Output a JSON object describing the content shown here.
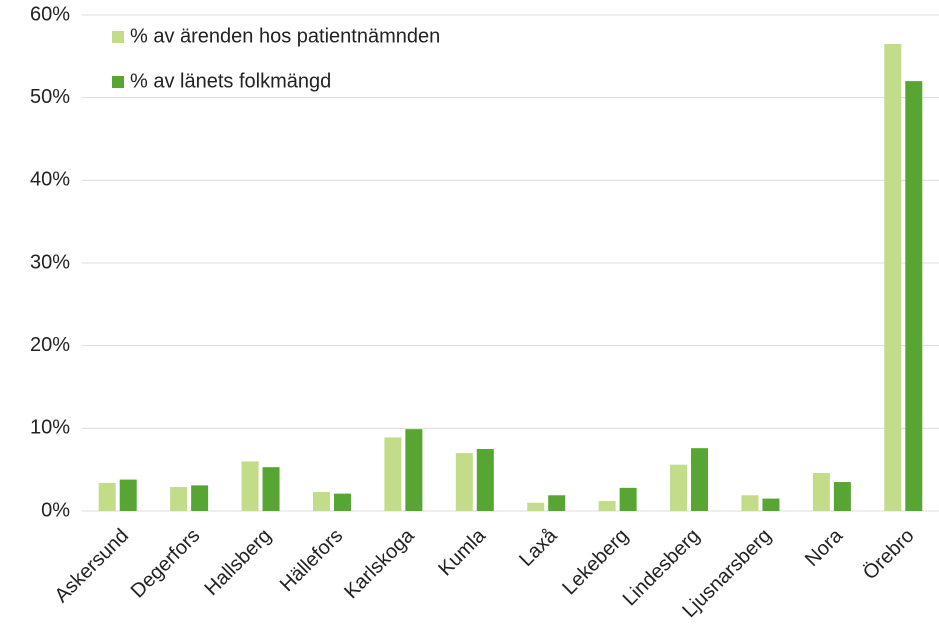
{
  "chart_data": {
    "type": "bar",
    "categories": [
      "Askersund",
      "Degerfors",
      "Hallsberg",
      "Hällefors",
      "Karlskoga",
      "Kumla",
      "Laxå",
      "Lekeberg",
      "Lindesberg",
      "Ljusnarsberg",
      "Nora",
      "Örebro"
    ],
    "series": [
      {
        "name": "% av ärenden hos patientnämnden",
        "color": "#c3dc8a",
        "values": [
          3.4,
          2.9,
          6.0,
          2.3,
          8.9,
          7.0,
          1.0,
          1.2,
          5.6,
          1.9,
          4.6,
          56.5
        ]
      },
      {
        "name": "% av länets folkmängd",
        "color": "#57a532",
        "values": [
          3.8,
          3.1,
          5.3,
          2.1,
          9.9,
          7.5,
          1.9,
          2.8,
          7.6,
          1.5,
          3.5,
          52.0
        ]
      }
    ],
    "ylim": [
      0,
      60
    ],
    "yticks": [
      {
        "value": 0,
        "label": "0%"
      },
      {
        "value": 10,
        "label": "10%"
      },
      {
        "value": 20,
        "label": "20%"
      },
      {
        "value": 30,
        "label": "30%"
      },
      {
        "value": 40,
        "label": "40%"
      },
      {
        "value": 50,
        "label": "50%"
      },
      {
        "value": 60,
        "label": "60%"
      }
    ],
    "grid": true,
    "legend": "upper left"
  }
}
